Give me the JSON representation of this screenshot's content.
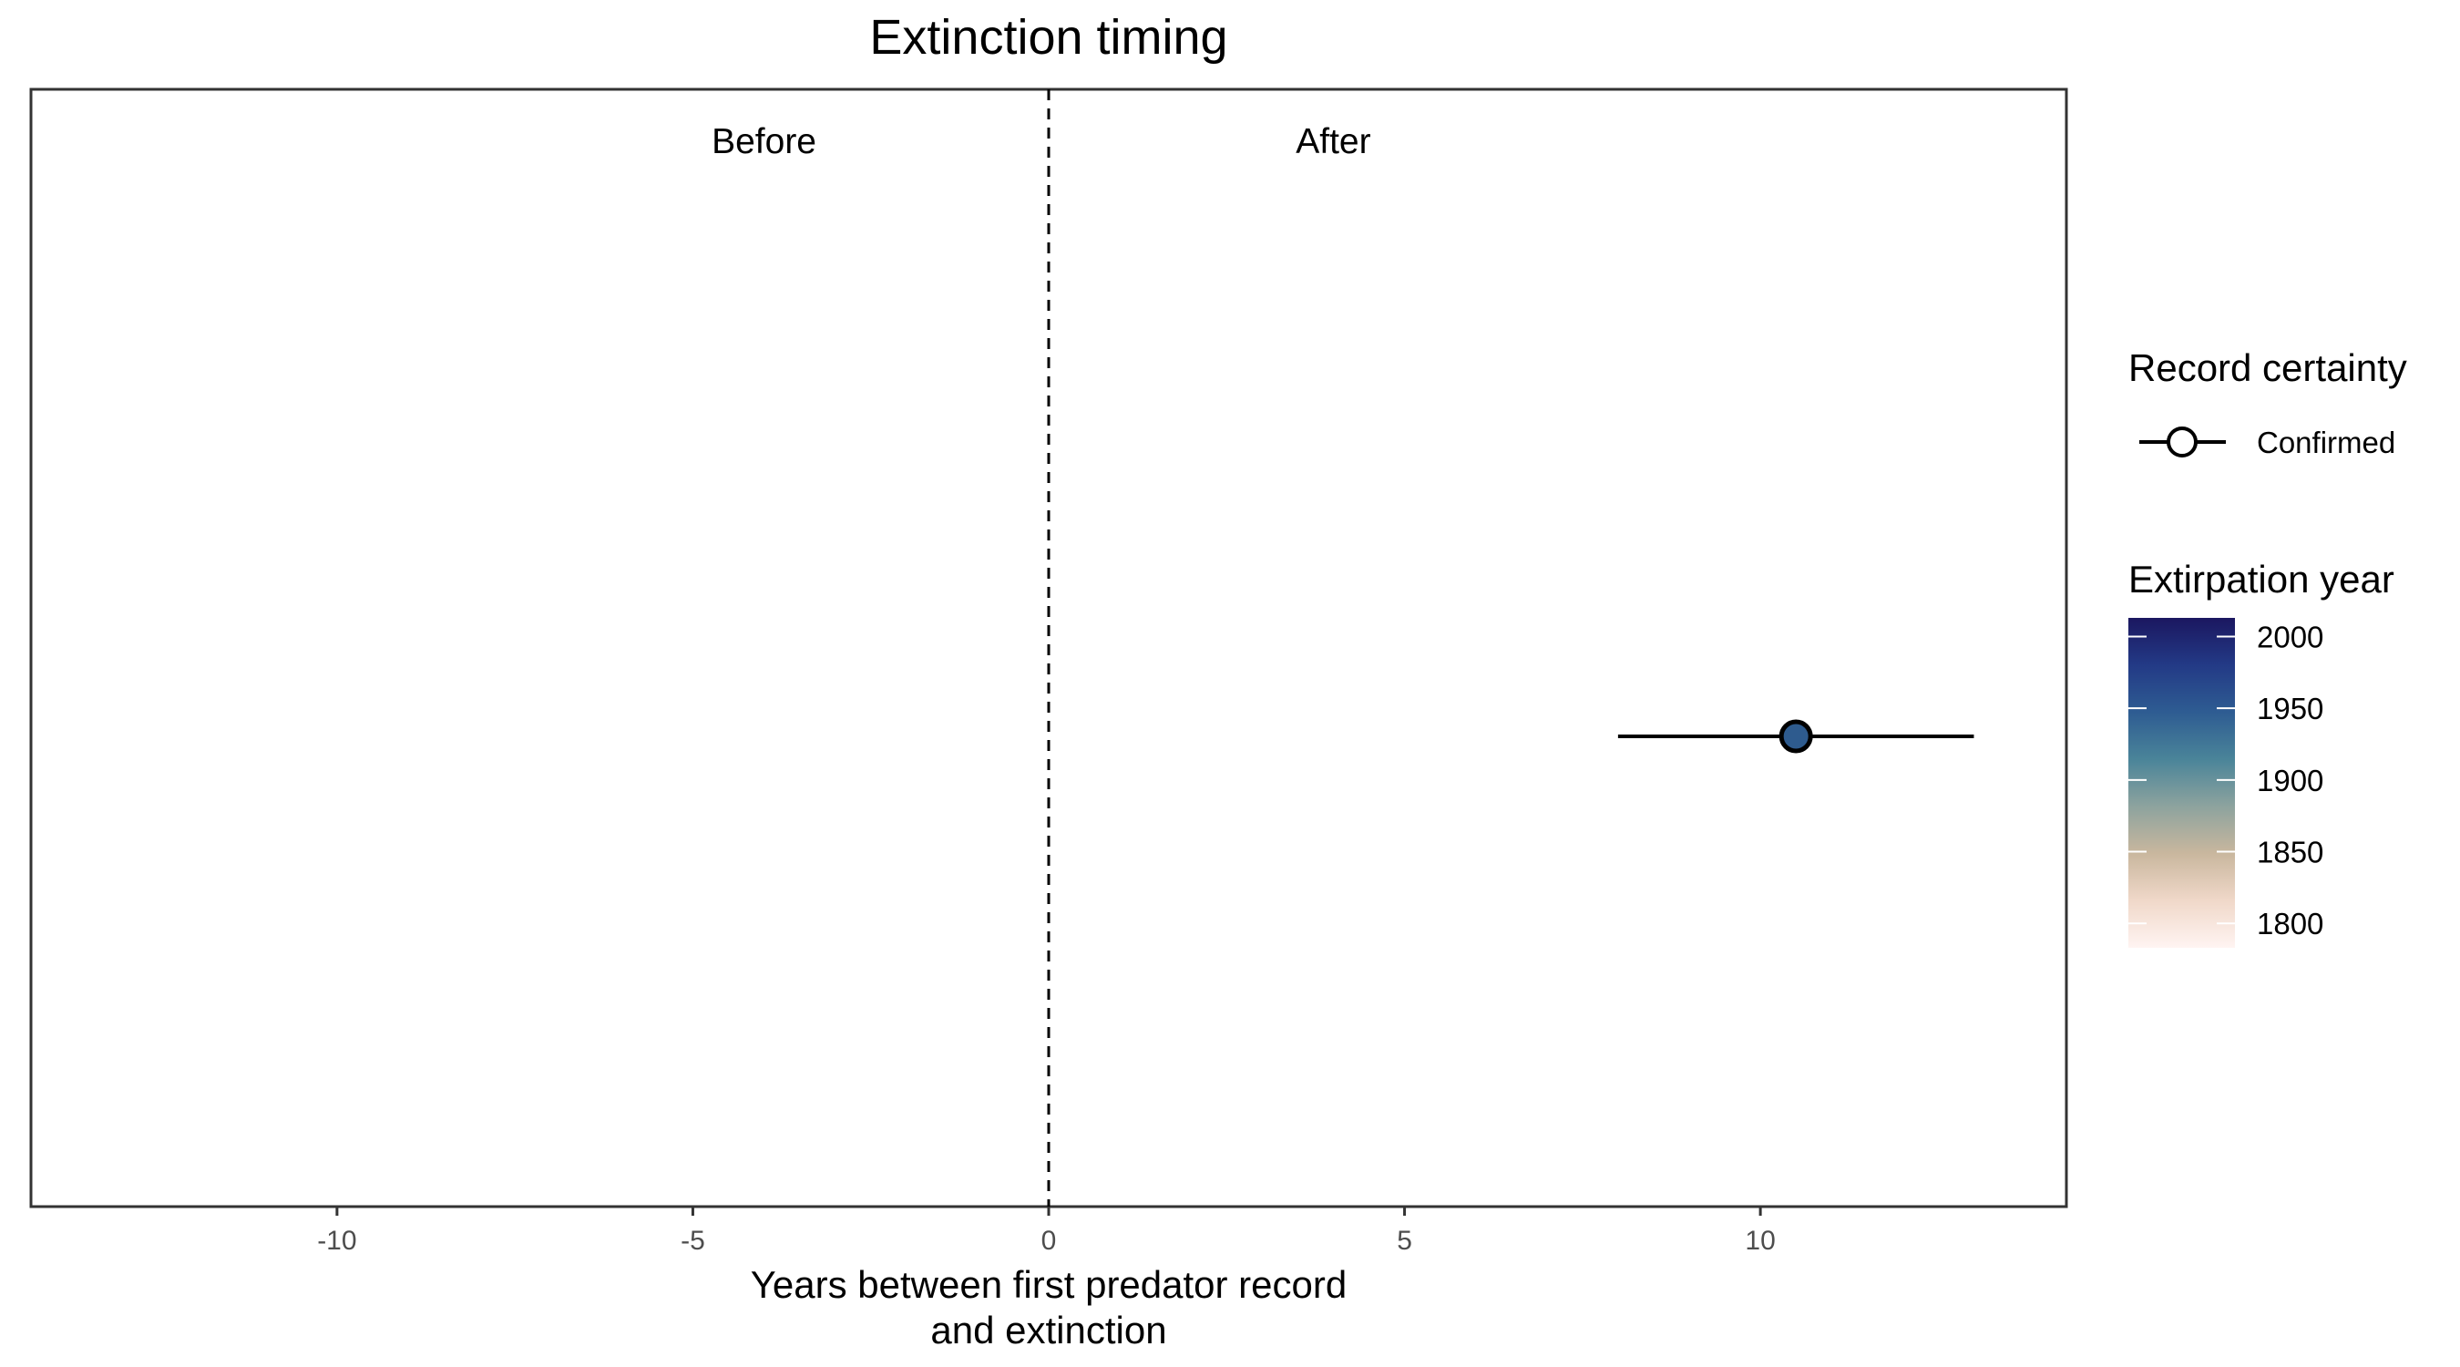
{
  "chart_data": {
    "type": "scatter",
    "title": "Extinction timing",
    "xlabel_lines": [
      "Years between first predator record",
      "and extinction"
    ],
    "ylabel": "",
    "xlim": [
      -14.3,
      14.3
    ],
    "x_ticks": [
      -10,
      -5,
      0,
      5,
      10
    ],
    "x_tick_labels": [
      "-10",
      "-5",
      "0",
      "5",
      "10"
    ],
    "reference_line": {
      "x": 0,
      "style": "dashed"
    },
    "annotations": [
      {
        "text": "Before",
        "x": -4
      },
      {
        "text": "After",
        "x": 4
      }
    ],
    "points": [
      {
        "x": 10.5,
        "x_min": 8.0,
        "x_max": 13.0,
        "extirpation_year": 1945,
        "certainty": "Confirmed",
        "color": "#2e5b8e"
      }
    ],
    "legend_certainty": {
      "title": "Record certainty",
      "entries": [
        "Confirmed"
      ]
    },
    "legend_colorbar": {
      "title": "Extirpation year",
      "ticks": [
        2000,
        1950,
        1900,
        1850,
        1800
      ],
      "tick_labels": [
        "2000",
        "1950",
        "1900",
        "1850",
        "1800"
      ],
      "range": [
        1783,
        2013
      ],
      "colors": [
        "#1b1760",
        "#233a86",
        "#2e5c92",
        "#4a8499",
        "#8da39e",
        "#c9b79e",
        "#f0d8c9",
        "#fff4f2"
      ]
    },
    "grid": false,
    "legend_position": "right"
  }
}
